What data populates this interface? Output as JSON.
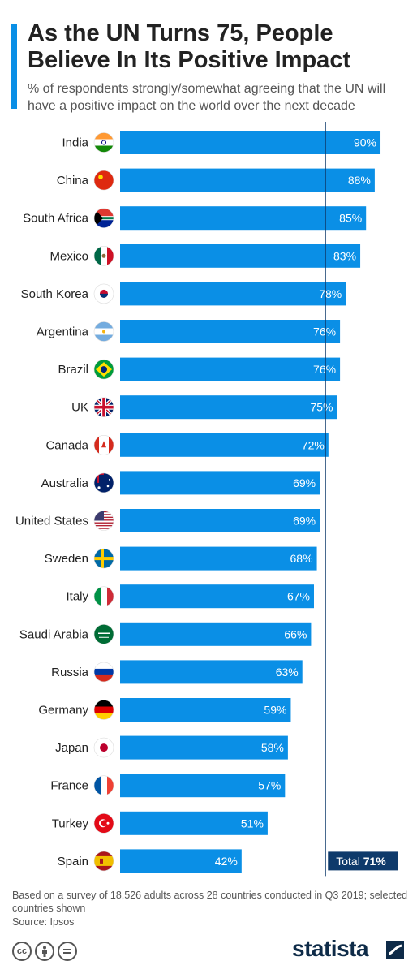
{
  "header": {
    "title": "As the UN Turns 75, People Believe In Its Positive Impact",
    "subtitle": "% of respondents strongly/somewhat agreeing that the UN will have a positive impact on the world over the next decade"
  },
  "chart_data": {
    "type": "bar",
    "orientation": "horizontal",
    "categories": [
      "India",
      "China",
      "South Africa",
      "Mexico",
      "South Korea",
      "Argentina",
      "Brazil",
      "UK",
      "Canada",
      "Australia",
      "United States",
      "Sweden",
      "Italy",
      "Saudi Arabia",
      "Russia",
      "Germany",
      "Japan",
      "France",
      "Turkey",
      "Spain"
    ],
    "values": [
      90,
      88,
      85,
      83,
      78,
      76,
      76,
      75,
      72,
      69,
      69,
      68,
      67,
      66,
      63,
      59,
      58,
      57,
      51,
      42
    ],
    "value_suffix": "%",
    "xlim": [
      0,
      100
    ],
    "bar_color": "#0a8fe6",
    "reference_line": {
      "value": 71,
      "label_prefix": "Total",
      "label_value": "71%",
      "color": "#0e3a6b"
    },
    "icons": [
      "india-flag-icon",
      "china-flag-icon",
      "south-africa-flag-icon",
      "mexico-flag-icon",
      "south-korea-flag-icon",
      "argentina-flag-icon",
      "brazil-flag-icon",
      "uk-flag-icon",
      "canada-flag-icon",
      "australia-flag-icon",
      "united-states-flag-icon",
      "sweden-flag-icon",
      "italy-flag-icon",
      "saudi-arabia-flag-icon",
      "russia-flag-icon",
      "germany-flag-icon",
      "japan-flag-icon",
      "france-flag-icon",
      "turkey-flag-icon",
      "spain-flag-icon"
    ]
  },
  "footer": {
    "note": "Based on a survey of 18,526 adults across 28 countries conducted in Q3 2019; selected countries shown",
    "source": "Source: Ipsos",
    "license_icons": [
      "cc-icon",
      "attribution-icon",
      "no-derivatives-icon"
    ],
    "brand": "statista"
  }
}
